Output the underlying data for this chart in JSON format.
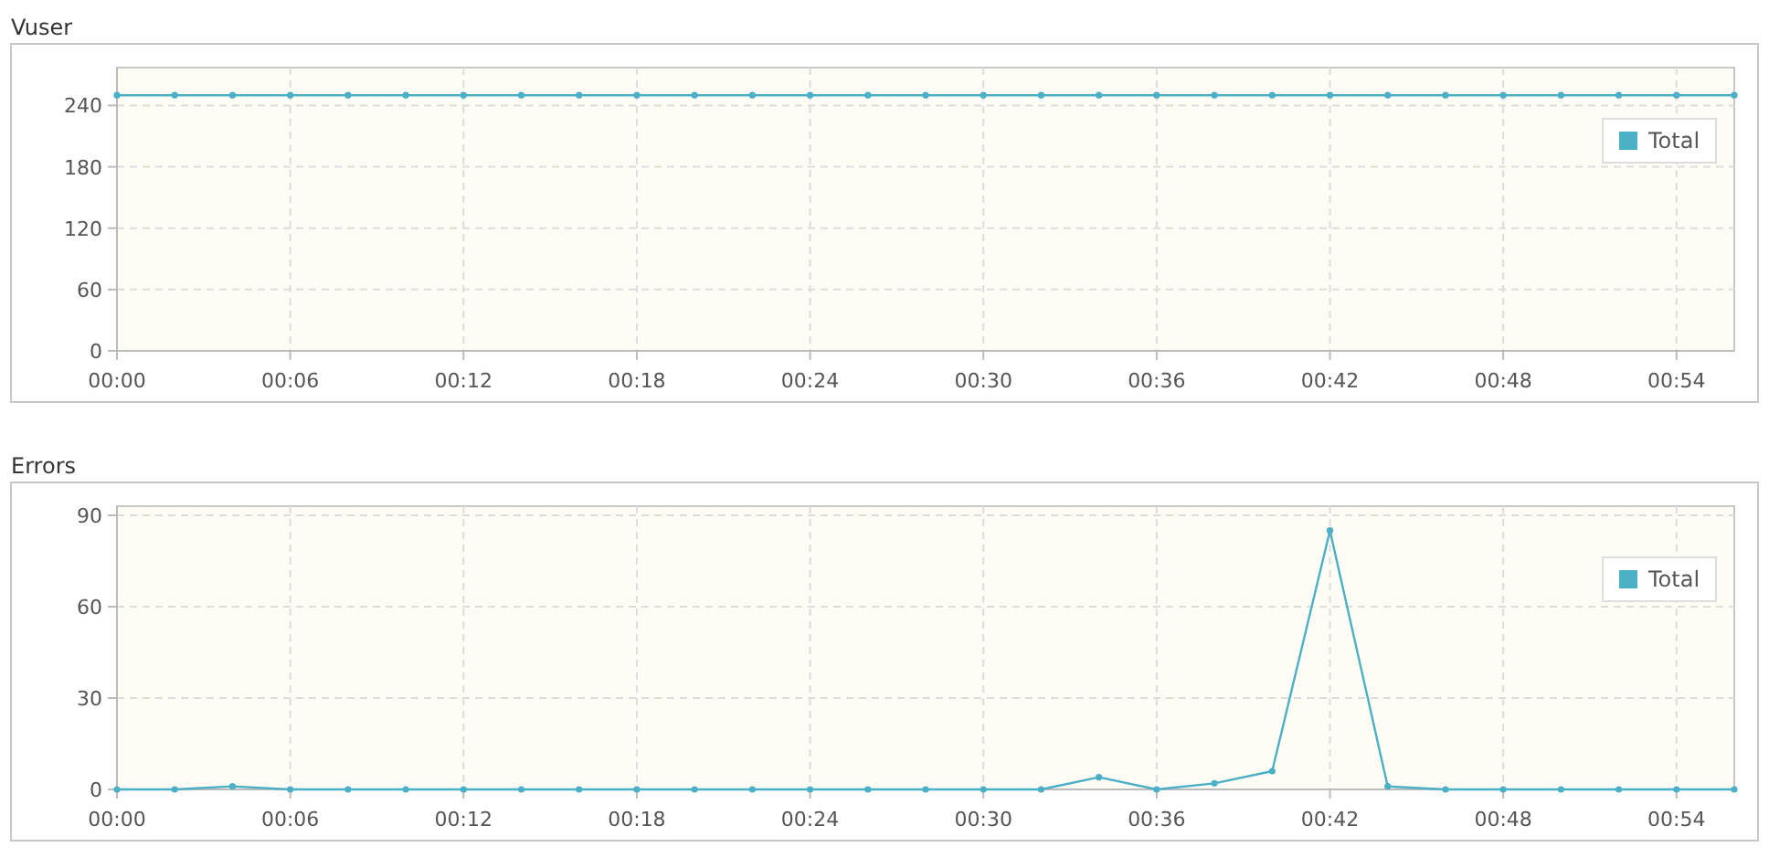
{
  "chart_data": [
    {
      "type": "line",
      "title": "Vuser",
      "x": [
        0,
        2,
        4,
        6,
        8,
        10,
        12,
        14,
        16,
        18,
        20,
        22,
        24,
        26,
        28,
        30,
        32,
        34,
        36,
        38,
        40,
        42,
        44,
        46,
        48,
        50,
        52,
        54,
        56
      ],
      "series": [
        {
          "name": "Total",
          "color": "#4bafc6",
          "values": [
            250,
            250,
            250,
            250,
            250,
            250,
            250,
            250,
            250,
            250,
            250,
            250,
            250,
            250,
            250,
            250,
            250,
            250,
            250,
            250,
            250,
            250,
            250,
            250,
            250,
            250,
            250,
            250,
            250
          ]
        }
      ],
      "xlim": [
        0,
        56
      ],
      "xticks": [
        {
          "value": 0,
          "label": "00:00"
        },
        {
          "value": 6,
          "label": "00:06"
        },
        {
          "value": 12,
          "label": "00:12"
        },
        {
          "value": 18,
          "label": "00:18"
        },
        {
          "value": 24,
          "label": "00:24"
        },
        {
          "value": 30,
          "label": "00:30"
        },
        {
          "value": 36,
          "label": "00:36"
        },
        {
          "value": 42,
          "label": "00:42"
        },
        {
          "value": 48,
          "label": "00:48"
        },
        {
          "value": 54,
          "label": "00:54"
        }
      ],
      "ylim": [
        0,
        277
      ],
      "yticks": [
        0,
        60,
        120,
        180,
        240
      ],
      "grid": true,
      "legend": "top right",
      "marker": "circle"
    },
    {
      "type": "line",
      "title": "Errors",
      "x": [
        0,
        2,
        4,
        6,
        8,
        10,
        12,
        14,
        16,
        18,
        20,
        22,
        24,
        26,
        28,
        30,
        32,
        34,
        36,
        38,
        40,
        42,
        44,
        46,
        48,
        50,
        52,
        54,
        56
      ],
      "series": [
        {
          "name": "Total",
          "color": "#4bafc6",
          "values": [
            0,
            0,
            1,
            0,
            0,
            0,
            0,
            0,
            0,
            0,
            0,
            0,
            0,
            0,
            0,
            0,
            0,
            4,
            0,
            2,
            6,
            85,
            1,
            0,
            0,
            0,
            0,
            0,
            0
          ]
        }
      ],
      "xlim": [
        0,
        56
      ],
      "xticks": [
        {
          "value": 0,
          "label": "00:00"
        },
        {
          "value": 6,
          "label": "00:06"
        },
        {
          "value": 12,
          "label": "00:12"
        },
        {
          "value": 18,
          "label": "00:18"
        },
        {
          "value": 24,
          "label": "00:24"
        },
        {
          "value": 30,
          "label": "00:30"
        },
        {
          "value": 36,
          "label": "00:36"
        },
        {
          "value": 42,
          "label": "00:42"
        },
        {
          "value": 48,
          "label": "00:48"
        },
        {
          "value": 54,
          "label": "00:54"
        }
      ],
      "ylim": [
        0,
        93
      ],
      "yticks": [
        0,
        30,
        60,
        90
      ],
      "grid": true,
      "legend": "top right",
      "marker": "circle"
    }
  ]
}
